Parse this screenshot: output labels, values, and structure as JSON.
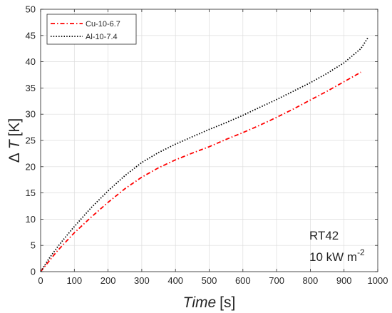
{
  "chart_data": {
    "type": "line",
    "title": "",
    "xlabel": {
      "italic": "Time",
      "unit": "[s]"
    },
    "ylabel": {
      "prefix": "Δ",
      "italic": "T",
      "unit": "[K]"
    },
    "xlim": [
      0,
      1000
    ],
    "ylim": [
      0,
      50
    ],
    "xticks": [
      0,
      100,
      200,
      300,
      400,
      500,
      600,
      700,
      800,
      900,
      1000
    ],
    "yticks": [
      0,
      5,
      10,
      15,
      20,
      25,
      30,
      35,
      40,
      45,
      50
    ],
    "grid": true,
    "box": true,
    "legend": {
      "placement": "top-left"
    },
    "series": [
      {
        "name": "Cu-10-6.7",
        "color": "#ff0000",
        "dash": "dash-dot",
        "x": [
          0,
          10,
          25,
          50,
          75,
          100,
          150,
          200,
          250,
          300,
          350,
          400,
          450,
          500,
          550,
          600,
          650,
          700,
          750,
          800,
          850,
          900,
          950
        ],
        "y": [
          0,
          0.8,
          2.0,
          4.0,
          5.7,
          7.4,
          10.4,
          13.2,
          15.8,
          18.0,
          19.8,
          21.3,
          22.6,
          23.8,
          25.2,
          26.5,
          27.9,
          29.4,
          31.0,
          32.7,
          34.4,
          36.2,
          38.0
        ]
      },
      {
        "name": "Al-10-7.4",
        "color": "#000000",
        "dash": "dotted",
        "x": [
          0,
          10,
          25,
          50,
          75,
          100,
          150,
          200,
          250,
          300,
          350,
          400,
          450,
          500,
          550,
          600,
          650,
          700,
          750,
          800,
          850,
          900,
          950,
          970
        ],
        "y": [
          0,
          1.0,
          2.5,
          4.7,
          6.7,
          8.6,
          12.2,
          15.4,
          18.3,
          20.8,
          22.7,
          24.3,
          25.7,
          27.1,
          28.4,
          29.8,
          31.3,
          32.8,
          34.4,
          36.0,
          37.8,
          39.8,
          42.5,
          44.5
        ]
      }
    ],
    "annotations": [
      {
        "text": "RT42"
      },
      {
        "text": "10 kW m",
        "superscript": "-2"
      }
    ]
  }
}
